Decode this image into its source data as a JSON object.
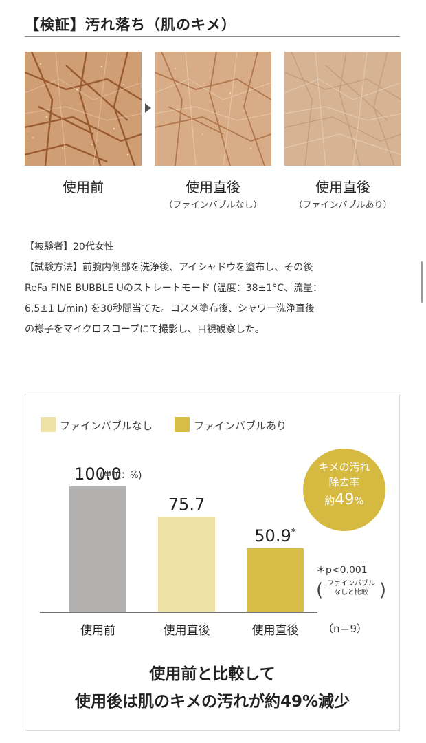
{
  "page": {
    "title": "【検証】汚れ落ち（肌のキメ）"
  },
  "photos": [
    {
      "caption": "使用前",
      "sub": ""
    },
    {
      "caption": "使用直後",
      "sub": "（ファインバブルなし）"
    },
    {
      "caption": "使用直後",
      "sub": "（ファインバブルあり）"
    }
  ],
  "description": {
    "lines": [
      "【被験者】20代女性",
      "【試験方法】前腕内側部を洗浄後、アイシャドウを塗布し、その後",
      "ReFa FINE BUBBLE Uのストレートモード (温度：38±1°C、流量：",
      "6.5±1 L/min) を30秒間当てた。コスメ塗布後、シャワー洗浄直後",
      "の様子をマイクロスコープにて撮影し、目視観察した。"
    ]
  },
  "chart_data": {
    "type": "bar",
    "categories": [
      "使用前",
      "使用直後",
      "使用直後"
    ],
    "values": [
      100.0,
      75.7,
      50.9
    ],
    "value_labels": [
      "100.0",
      "75.7",
      "50.9"
    ],
    "value_marks": [
      "",
      "",
      "*"
    ],
    "unit_label": "(単位：%)",
    "bar_colors": [
      "#b3b0b0",
      "#efe2a6",
      "#d8be47"
    ],
    "legend": [
      {
        "label": "ファインバブルなし",
        "color": "#efe2a6"
      },
      {
        "label": "ファインバブルあり",
        "color": "#d8be47"
      }
    ],
    "ylim": [
      0,
      100
    ],
    "grid": false,
    "annotation": {
      "line1": "キメの汚れ",
      "line2": "除去率",
      "prefix": "約",
      "value": "49",
      "unit": "%",
      "color": "#d5b941"
    },
    "significance": "＊p<0.001",
    "significance_note_1": "ファインバブル",
    "significance_note_2": "なしと比較",
    "n_label": "（n＝9）"
  },
  "conclusion": {
    "line1": "使用前と比較して",
    "line2": "使用後は肌のキメの汚れが約49%減少"
  }
}
